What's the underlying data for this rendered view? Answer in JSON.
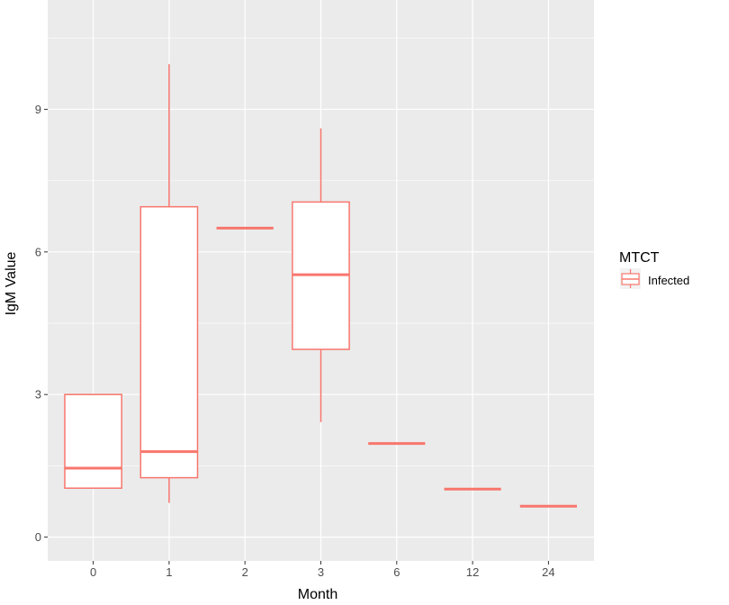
{
  "chart_data": {
    "type": "boxplot",
    "xlabel": "Month",
    "ylabel": "IgM Value",
    "categories": [
      "0",
      "1",
      "2",
      "3",
      "6",
      "12",
      "24"
    ],
    "ylim": [
      -0.5,
      11.3
    ],
    "yticks": [
      0,
      3,
      6,
      9
    ],
    "grid": true,
    "legend": {
      "title": "MTCT",
      "position": "right",
      "entries": [
        "Infected"
      ]
    },
    "series": [
      {
        "name": "Infected",
        "color": "#F8766D",
        "boxes": [
          {
            "category": "0",
            "min": 1.03,
            "q1": 1.03,
            "median": 1.45,
            "q3": 3.0,
            "max": 3.0
          },
          {
            "category": "1",
            "min": 0.72,
            "q1": 1.25,
            "median": 1.8,
            "q3": 6.95,
            "max": 9.95
          },
          {
            "category": "2",
            "min": 6.5,
            "q1": 6.5,
            "median": 6.5,
            "q3": 6.5,
            "max": 6.5
          },
          {
            "category": "3",
            "min": 2.42,
            "q1": 3.95,
            "median": 5.52,
            "q3": 7.05,
            "max": 8.6
          },
          {
            "category": "6",
            "min": 1.97,
            "q1": 1.97,
            "median": 1.97,
            "q3": 1.97,
            "max": 1.97
          },
          {
            "category": "12",
            "min": 1.01,
            "q1": 1.01,
            "median": 1.01,
            "q3": 1.01,
            "max": 1.01
          },
          {
            "category": "24",
            "min": 0.65,
            "q1": 0.65,
            "median": 0.65,
            "q3": 0.65,
            "max": 0.65
          }
        ]
      }
    ]
  },
  "colors": {
    "panel_background": "#EBEBEB",
    "grid_major": "#FFFFFF",
    "box_stroke": "#F8766D",
    "box_fill": "#FFFFFF"
  }
}
